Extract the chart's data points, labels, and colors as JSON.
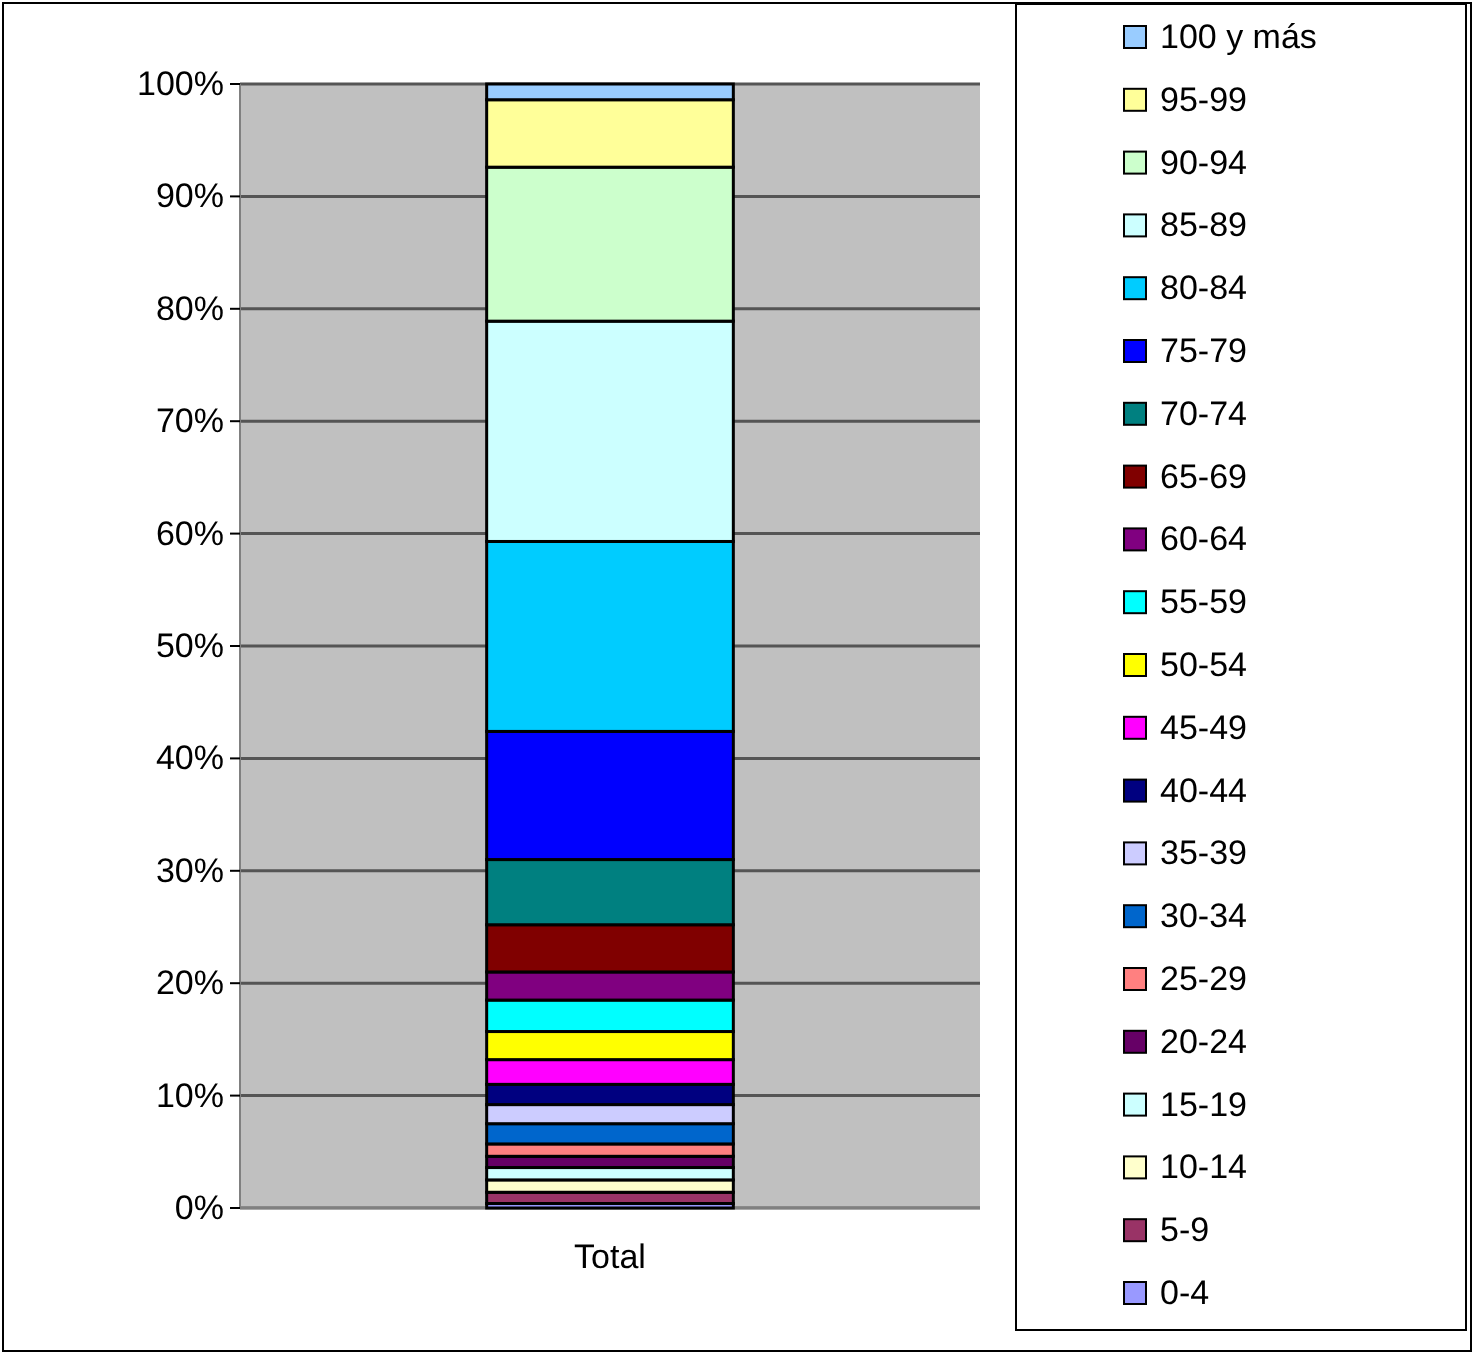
{
  "chart_data": {
    "type": "bar",
    "stacked": true,
    "categories": [
      "Total"
    ],
    "ylim": [
      0,
      100
    ],
    "yticks": [
      {
        "value": 0,
        "label": "0%"
      },
      {
        "value": 10,
        "label": "10%"
      },
      {
        "value": 20,
        "label": "20%"
      },
      {
        "value": 30,
        "label": "30%"
      },
      {
        "value": 40,
        "label": "40%"
      },
      {
        "value": 50,
        "label": "50%"
      },
      {
        "value": 60,
        "label": "60%"
      },
      {
        "value": 70,
        "label": "70%"
      },
      {
        "value": 80,
        "label": "80%"
      },
      {
        "value": 90,
        "label": "90%"
      },
      {
        "value": 100,
        "label": "100%"
      }
    ],
    "grid": "y",
    "legend": "right",
    "series": [
      {
        "name": "0-4",
        "color": "#9999ff",
        "values": [
          0.4
        ]
      },
      {
        "name": "5-9",
        "color": "#993366",
        "values": [
          1.0
        ]
      },
      {
        "name": "10-14",
        "color": "#ffffcc",
        "values": [
          1.1
        ]
      },
      {
        "name": "15-19",
        "color": "#ccffff",
        "values": [
          1.1
        ]
      },
      {
        "name": "20-24",
        "color": "#660066",
        "values": [
          1.0
        ]
      },
      {
        "name": "25-29",
        "color": "#ff8080",
        "values": [
          1.1
        ]
      },
      {
        "name": "30-34",
        "color": "#0066cc",
        "values": [
          1.8
        ]
      },
      {
        "name": "35-39",
        "color": "#ccccff",
        "values": [
          1.7
        ]
      },
      {
        "name": "40-44",
        "color": "#000080",
        "values": [
          1.8
        ]
      },
      {
        "name": "45-49",
        "color": "#ff00ff",
        "values": [
          2.2
        ]
      },
      {
        "name": "50-54",
        "color": "#ffff00",
        "values": [
          2.5
        ]
      },
      {
        "name": "55-59",
        "color": "#00ffff",
        "values": [
          2.8
        ]
      },
      {
        "name": "60-64",
        "color": "#800080",
        "values": [
          2.5
        ]
      },
      {
        "name": "65-69",
        "color": "#800000",
        "values": [
          4.2
        ]
      },
      {
        "name": "70-74",
        "color": "#008080",
        "values": [
          5.8
        ]
      },
      {
        "name": "75-79",
        "color": "#0000ff",
        "values": [
          11.4
        ]
      },
      {
        "name": "80-84",
        "color": "#00ccff",
        "values": [
          16.9
        ]
      },
      {
        "name": "85-89",
        "color": "#ccffff",
        "values": [
          19.6
        ]
      },
      {
        "name": "90-94",
        "color": "#ccffcc",
        "values": [
          13.7
        ]
      },
      {
        "name": "95-99",
        "color": "#ffff99",
        "values": [
          6.0
        ]
      },
      {
        "name": "100 y más",
        "color": "#99ccff",
        "values": [
          1.4
        ]
      }
    ]
  }
}
